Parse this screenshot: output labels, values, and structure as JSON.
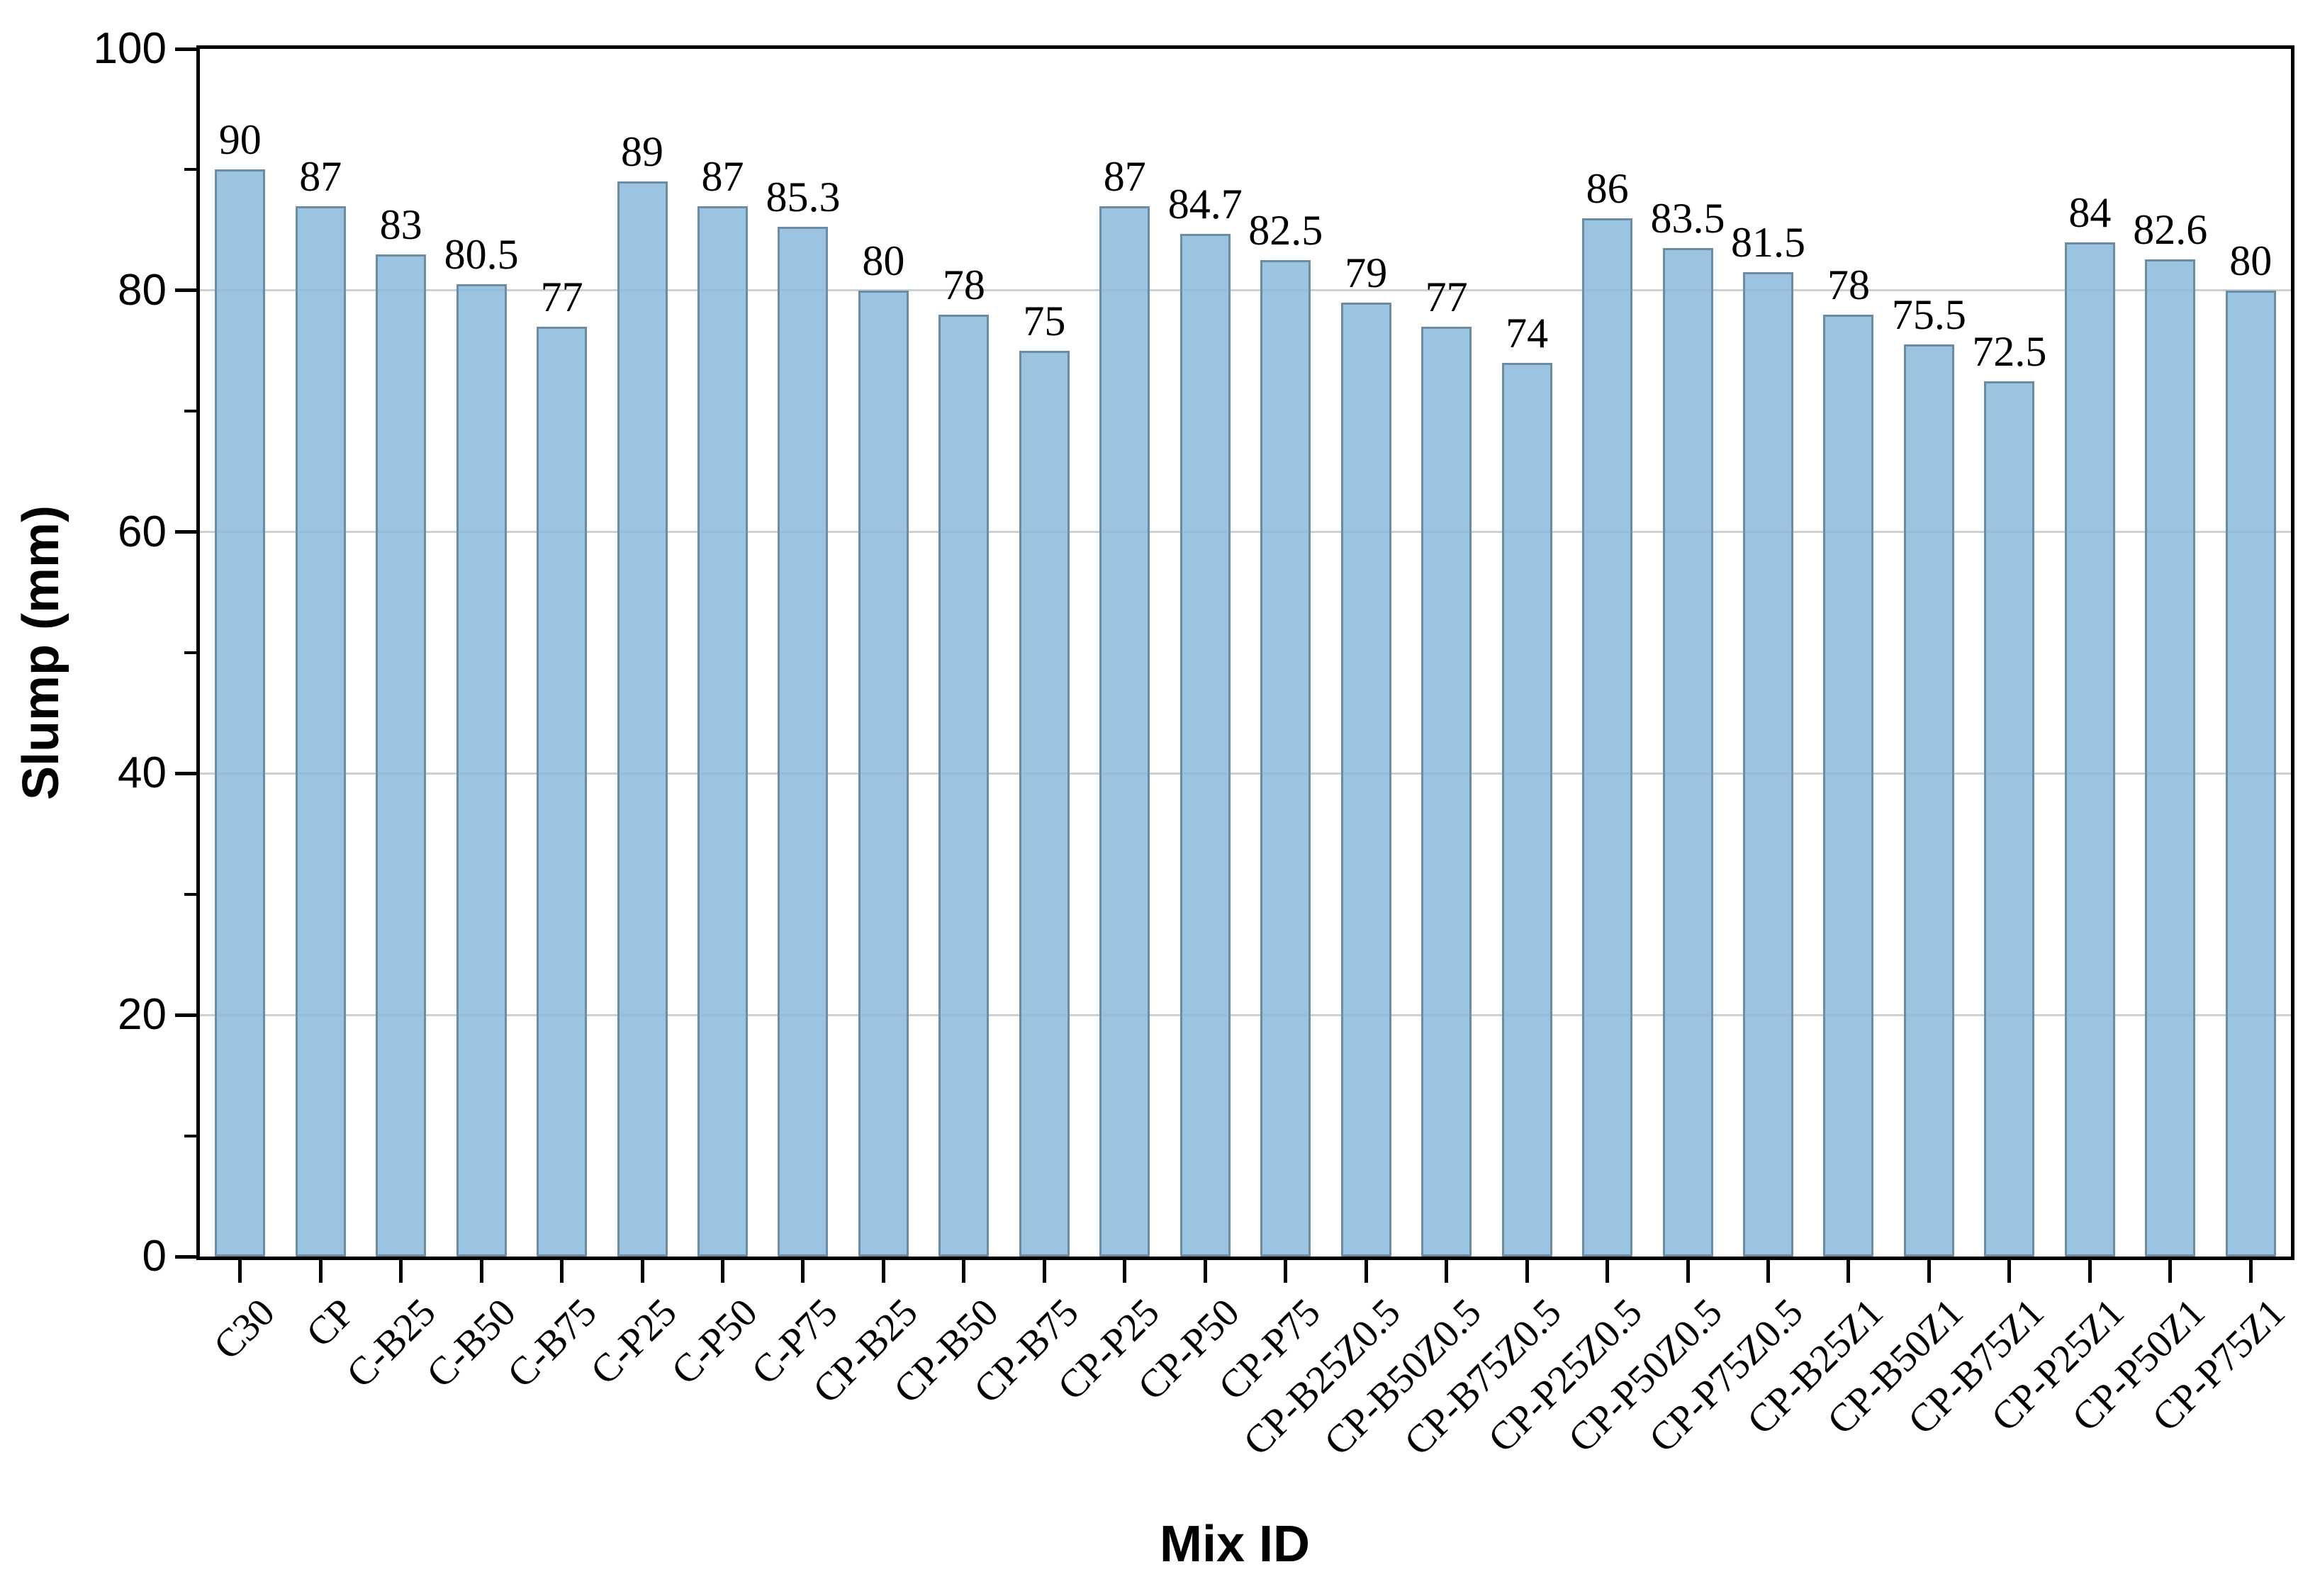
{
  "chart_data": {
    "type": "bar",
    "title": "",
    "xlabel": "Mix ID",
    "ylabel": "Slump (mm)",
    "categories": [
      "C30",
      "CP",
      "C-B25",
      "C-B50",
      "C-B75",
      "C-P25",
      "C-P50",
      "C-P75",
      "CP-B25",
      "CP-B50",
      "CP-B75",
      "CP-P25",
      "CP-P50",
      "CP-P75",
      "CP-B25Z0.5",
      "CP-B50Z0.5",
      "CP-B75Z0.5",
      "CP-P25Z0.5",
      "CP-P50Z0.5",
      "CP-P75Z0.5",
      "CP-B25Z1",
      "CP-B50Z1",
      "CP-B75Z1",
      "CP-P25Z1",
      "CP-P50Z1",
      "CP-P75Z1"
    ],
    "values": [
      90,
      87,
      83,
      80.5,
      77,
      89,
      87,
      85.3,
      80,
      78,
      75,
      87,
      84.7,
      82.5,
      79,
      77,
      74,
      86,
      83.5,
      81.5,
      78,
      75.5,
      72.5,
      84,
      82.6,
      80
    ],
    "value_labels": [
      "90",
      "87",
      "83",
      "80.5",
      "77",
      "89",
      "87",
      "85.3",
      "80",
      "78",
      "75",
      "87",
      "84.7",
      "82.5",
      "79",
      "77",
      "74",
      "86",
      "83.5",
      "81.5",
      "78",
      "75.5",
      "72.5",
      "84",
      "82.6",
      "80"
    ],
    "ylim": [
      0,
      100
    ],
    "y_major_ticks": [
      0,
      20,
      40,
      60,
      80,
      100
    ],
    "y_minor_ticks": [
      10,
      30,
      50,
      70,
      90
    ],
    "y_gridlines": [
      20,
      40,
      60,
      80
    ],
    "grid": "horizontal-major-on",
    "legend_position": "none",
    "colors": {
      "bar_fill": "#9AC4E1",
      "bar_border": "#6B8CA3",
      "grid_line": "#DCDCDC",
      "axis": "#000000"
    }
  }
}
